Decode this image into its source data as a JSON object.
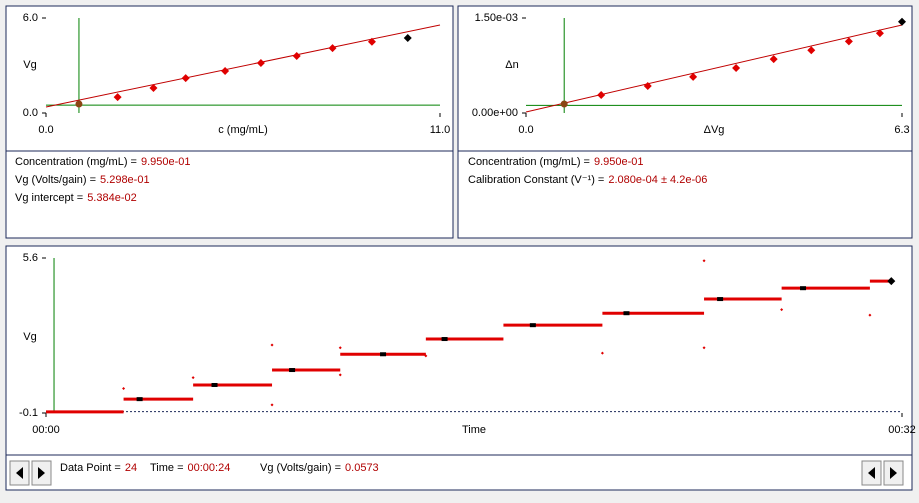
{
  "chart_data": [
    {
      "type": "scatter",
      "ylabel": "Vg",
      "xlabel": "c (mg/mL)",
      "xlim": [
        0,
        11
      ],
      "ylim": [
        0,
        6
      ],
      "xticks": [
        {
          "value": 0,
          "label": "0.0"
        },
        {
          "value": 11,
          "label": "11.0"
        }
      ],
      "yticks": [
        {
          "value": 0,
          "label": "0.0"
        },
        {
          "value": 6,
          "label": "6.0"
        }
      ],
      "cursor_x": 0.92,
      "cursor_y": 0.5,
      "cursor_color": "#008000",
      "fit": {
        "x": [
          0,
          11
        ],
        "values": [
          0.38,
          5.56
        ],
        "color": "#c00000"
      },
      "points": {
        "x": [
          2.0,
          3.0,
          3.9,
          5.0,
          6.0,
          7.0,
          8.0,
          9.1
        ],
        "values": [
          1.0,
          1.58,
          2.2,
          2.65,
          3.16,
          3.6,
          4.1,
          4.5
        ],
        "color": "#e00000"
      },
      "first": {
        "x": 0.92,
        "value": 0.57,
        "color": "#8b4513"
      },
      "last": {
        "x": 10.1,
        "value": 4.74,
        "color": "#000000"
      }
    },
    {
      "type": "scatter",
      "ylabel": "Δn",
      "xlabel": "ΔVg",
      "xlim": [
        0,
        6.3
      ],
      "ylim": [
        0,
        0.0015
      ],
      "xticks": [
        {
          "value": 0,
          "label": "0.0"
        },
        6.3
      ],
      "yticks": [
        {
          "value": 0,
          "label": "0.00e+00"
        },
        {
          "value": 0.0015,
          "label": "1.50e-03"
        }
      ],
      "cursor_x": 0.64,
      "cursor_y": 0.00012,
      "cursor_color": "#008000",
      "fit": {
        "x": [
          0,
          6.3
        ],
        "values": [
          1.6e-05,
          0.00139
        ],
        "color": "#c00000"
      },
      "points": {
        "x": [
          1.26,
          2.04,
          2.8,
          3.52,
          4.15,
          4.78,
          5.41,
          5.93
        ],
        "values": [
          0.000284,
          0.000426,
          0.00057,
          0.00071,
          0.00085,
          0.00099,
          0.00113,
          0.00126
        ],
        "color": "#e00000"
      },
      "first": {
        "x": 0.64,
        "value": 0.000142,
        "color": "#8b4513"
      },
      "last": {
        "x": 6.3,
        "value": 0.00144,
        "color": "#000000"
      }
    },
    {
      "type": "step",
      "ylabel": "Vg",
      "xlabel": "Time",
      "xlim": [
        0,
        32
      ],
      "ylim": [
        -0.1,
        5.6
      ],
      "xticks": [
        {
          "value": 0,
          "label": "00:00"
        },
        {
          "value": 32,
          "label": "00:32"
        }
      ],
      "yticks": [
        -0.1,
        5.6
      ],
      "cursor_x": 0.3,
      "cursor_color": "#008000",
      "baseline": -0.05,
      "steps": {
        "x_start": [
          0,
          2.9,
          5.5,
          8.45,
          11.0,
          14.2,
          17.1,
          20.8,
          24.6,
          27.5,
          30.8
        ],
        "x_end": [
          2.9,
          5.5,
          8.45,
          11.0,
          14.2,
          17.1,
          20.8,
          24.6,
          27.5,
          30.8,
          31.6
        ],
        "values": [
          -0.06,
          0.41,
          0.93,
          1.48,
          2.06,
          2.62,
          3.13,
          3.57,
          4.09,
          4.49,
          4.75
        ],
        "color": "#e00000"
      },
      "averages": {
        "x": [
          3.5,
          6.3,
          9.2,
          12.6,
          14.9,
          18.2,
          21.7,
          25.2,
          28.3
        ],
        "values": [
          0.41,
          0.93,
          1.48,
          2.06,
          2.62,
          3.13,
          3.57,
          4.09,
          4.49
        ],
        "color": "#000000"
      },
      "outliers": {
        "x": [
          2.9,
          5.5,
          8.45,
          8.45,
          11.0,
          11.0,
          14.2,
          20.8,
          24.6,
          24.6,
          27.5,
          30.8
        ],
        "values": [
          0.8,
          1.2,
          2.4,
          0.2,
          2.3,
          1.3,
          2.0,
          2.1,
          5.5,
          2.3,
          3.7,
          3.5
        ],
        "color": "#e00000"
      },
      "last": {
        "x": 31.6,
        "value": 4.75,
        "color": "#000000"
      }
    }
  ],
  "info_left": [
    {
      "label": "Concentration (mg/mL) =",
      "value": "9.950e-01"
    },
    {
      "label": "Vg (Volts/gain) =",
      "value": "5.298e-01"
    },
    {
      "label": "Vg intercept =",
      "value": "5.384e-02"
    }
  ],
  "info_right": [
    {
      "label": "Concentration (mg/mL) =",
      "value": "9.950e-01"
    },
    {
      "label": "Calibration Constant (V⁻¹) =",
      "value": "2.080e-04 ±  4.2e-06"
    }
  ],
  "status": {
    "data_point_label": "Data Point =",
    "data_point": 24,
    "time_label": "Time =",
    "time": "00:00:24",
    "vg_label": "Vg (Volts/gain) =",
    "vg": 0.0573
  }
}
